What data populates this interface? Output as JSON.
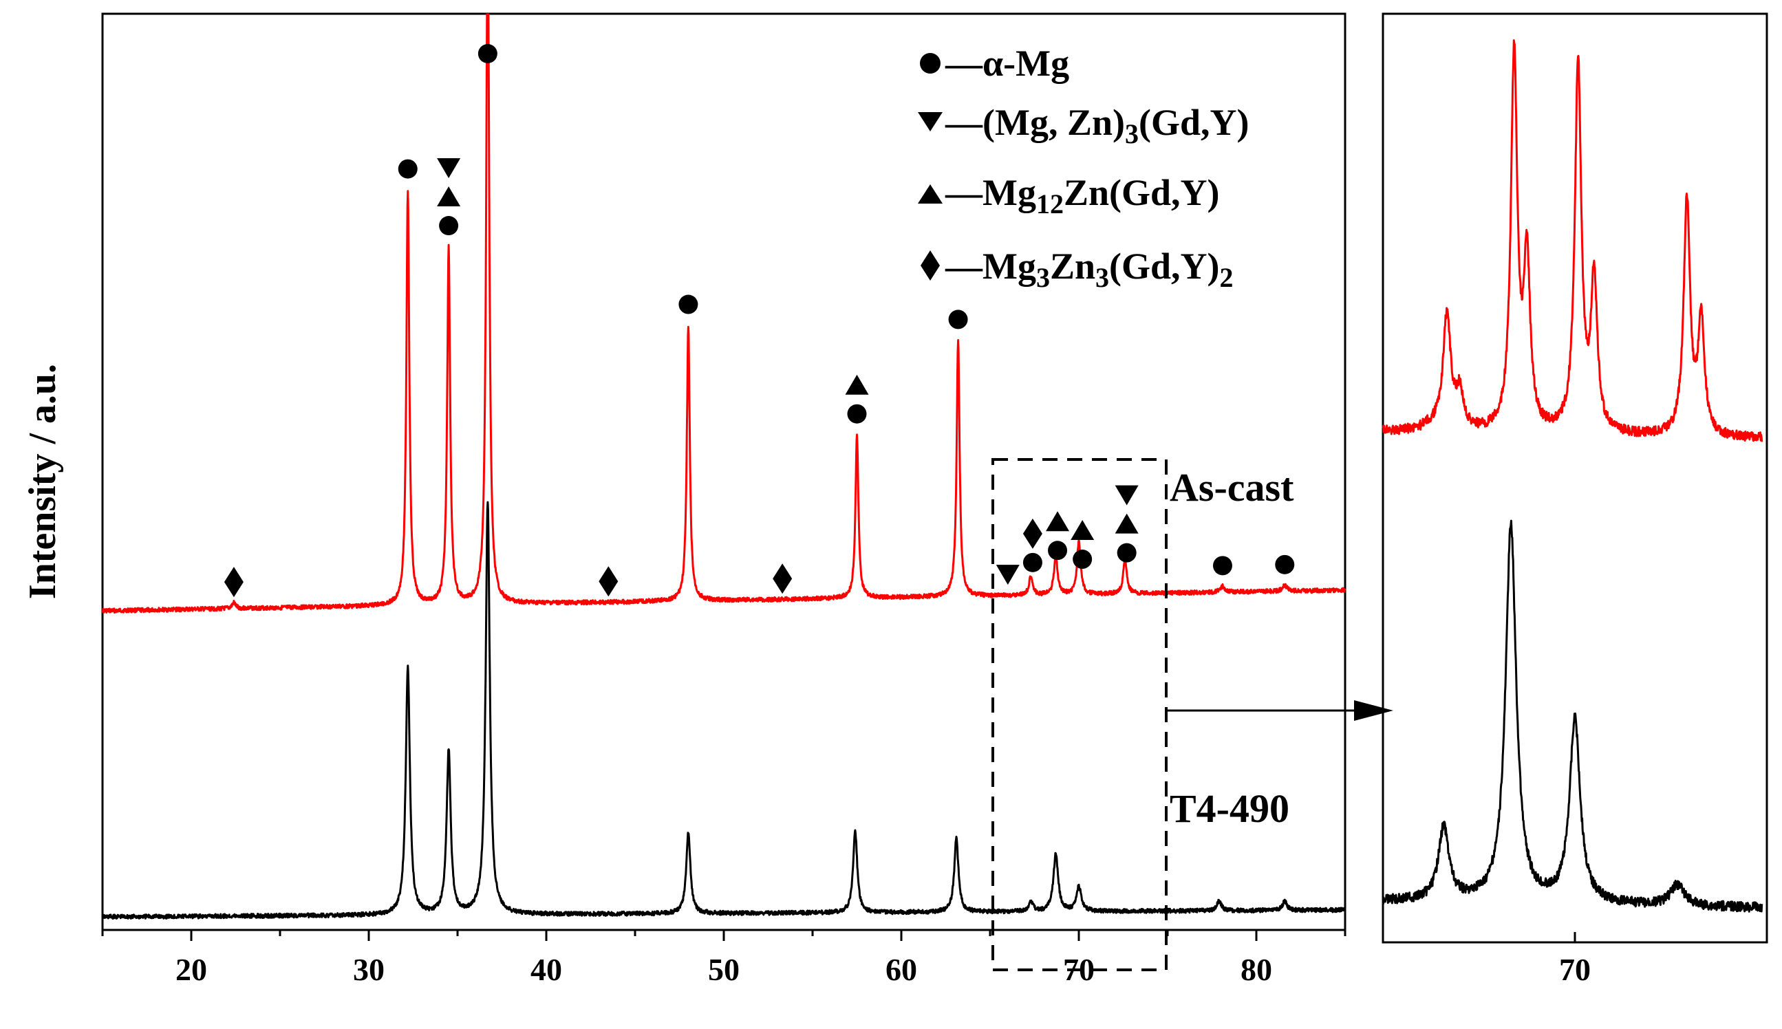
{
  "chart_data": [
    {
      "type": "line",
      "xlim": [
        15,
        85
      ],
      "xticks": [
        "20",
        "30",
        "40",
        "50",
        "60",
        "70",
        "80"
      ],
      "ylabel": "Intensity / a.u.",
      "xlabel": "",
      "legend": [
        {
          "marker": "circle",
          "sep": "—",
          "label": "α-Mg"
        },
        {
          "marker": "tri-down",
          "sep": "—",
          "parts": [
            "(Mg, Zn)",
            "3",
            "(Gd,Y)"
          ]
        },
        {
          "marker": "tri-up",
          "sep": "—",
          "parts": [
            "Mg",
            "12",
            "Zn(Gd,Y)"
          ]
        },
        {
          "marker": "diamond",
          "sep": "—",
          "parts": [
            "Mg",
            "3",
            "Zn",
            "3",
            "(Gd,Y)",
            "2"
          ]
        }
      ],
      "series": [
        {
          "name": "As-cast",
          "color": "#ff0000",
          "baseline": 0.0,
          "peaks": [
            [
              22.4,
              0.012,
              0.12
            ],
            [
              32.2,
              0.85,
              0.1
            ],
            [
              34.5,
              0.73,
              0.1
            ],
            [
              36.7,
              1.45,
              0.1
            ],
            [
              48.0,
              0.565,
              0.1
            ],
            [
              57.5,
              0.335,
              0.1
            ],
            [
              63.2,
              0.525,
              0.1
            ],
            [
              67.3,
              0.04,
              0.12
            ],
            [
              68.7,
              0.08,
              0.12
            ],
            [
              70.0,
              0.11,
              0.12
            ],
            [
              72.6,
              0.07,
              0.12
            ],
            [
              78.1,
              0.012,
              0.15
            ],
            [
              81.6,
              0.012,
              0.15
            ]
          ],
          "markers": [
            {
              "x": 22.4,
              "symbols": [
                "diamond"
              ]
            },
            {
              "x": 32.2,
              "symbols": [
                "circle"
              ]
            },
            {
              "x": 34.5,
              "symbols": [
                "circle",
                "tri-up",
                "tri-down"
              ]
            },
            {
              "x": 36.7,
              "symbols": [
                "circle"
              ]
            },
            {
              "x": 43.5,
              "symbols": [
                "diamond"
              ]
            },
            {
              "x": 48.0,
              "symbols": [
                "circle"
              ]
            },
            {
              "x": 53.3,
              "symbols": [
                "diamond"
              ]
            },
            {
              "x": 57.5,
              "symbols": [
                "circle",
                "tri-up"
              ]
            },
            {
              "x": 63.2,
              "symbols": [
                "circle"
              ]
            },
            {
              "x": 66.0,
              "symbols": [
                "tri-down"
              ]
            },
            {
              "x": 67.4,
              "symbols": [
                "circle",
                "diamond"
              ]
            },
            {
              "x": 68.8,
              "symbols": [
                "circle",
                "tri-up"
              ]
            },
            {
              "x": 70.2,
              "symbols": [
                "circle",
                "tri-up"
              ]
            },
            {
              "x": 72.7,
              "symbols": [
                "circle",
                "tri-up",
                "tri-down"
              ]
            },
            {
              "x": 78.1,
              "symbols": [
                "circle"
              ]
            },
            {
              "x": 81.6,
              "symbols": [
                "circle"
              ]
            }
          ]
        },
        {
          "name": "T4-490",
          "color": "#000000",
          "baseline": 0.0,
          "peaks": [
            [
              32.2,
              0.5,
              0.14
            ],
            [
              34.5,
              0.33,
              0.14
            ],
            [
              36.7,
              0.83,
              0.14
            ],
            [
              48.0,
              0.165,
              0.14
            ],
            [
              57.4,
              0.165,
              0.14
            ],
            [
              63.1,
              0.15,
              0.14
            ],
            [
              67.3,
              0.02,
              0.15
            ],
            [
              68.7,
              0.115,
              0.16
            ],
            [
              70.0,
              0.05,
              0.16
            ],
            [
              77.9,
              0.02,
              0.15
            ],
            [
              81.6,
              0.018,
              0.15
            ]
          ],
          "markers": []
        }
      ],
      "annotations": [
        "As-cast",
        "T4-490"
      ],
      "zoom_box_x": [
        65.0,
        75.0
      ]
    },
    {
      "type": "line",
      "title": "",
      "xlim": [
        64.0,
        76.0
      ],
      "xticks": [
        "70"
      ],
      "series": [
        {
          "name": "As-cast",
          "color": "#ff0000",
          "peaks": [
            [
              65.6,
              0.012,
              0.4
            ],
            [
              66.0,
              0.22,
              0.14
            ],
            [
              66.4,
              0.07,
              0.14
            ],
            [
              68.1,
              0.72,
              0.12
            ],
            [
              68.5,
              0.32,
              0.12
            ],
            [
              70.1,
              0.71,
              0.12
            ],
            [
              70.6,
              0.29,
              0.12
            ],
            [
              73.5,
              0.45,
              0.12
            ],
            [
              73.95,
              0.22,
              0.12
            ]
          ]
        },
        {
          "name": "T4-490",
          "color": "#000000",
          "peaks": [
            [
              65.9,
              0.14,
              0.2
            ],
            [
              68.0,
              0.72,
              0.2
            ],
            [
              70.0,
              0.35,
              0.2
            ],
            [
              73.2,
              0.04,
              0.25
            ]
          ]
        }
      ]
    }
  ]
}
